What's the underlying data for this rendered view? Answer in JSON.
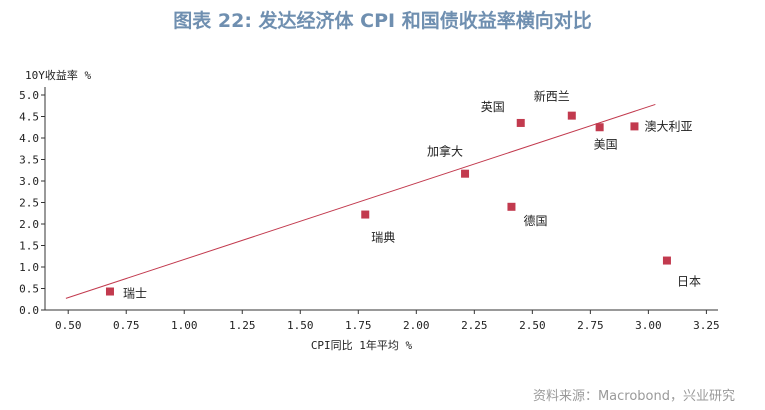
{
  "header": {
    "title": "图表 22: 发达经济体 CPI 和国债收益率横向对比"
  },
  "footer": {
    "source": "资料来源：Macrobond，兴业研究"
  },
  "chart_data": {
    "type": "scatter",
    "xlabel": "CPI同比 1年平均 %",
    "ylabel": "10Y收益率 %",
    "xlim": [
      0.4,
      3.3
    ],
    "ylim": [
      0.0,
      5.0
    ],
    "xticks": [
      "0.50",
      "0.75",
      "1.00",
      "1.25",
      "1.50",
      "1.75",
      "2.00",
      "2.25",
      "2.50",
      "2.75",
      "3.00",
      "3.25"
    ],
    "yticks": [
      "0.0",
      "0.5",
      "1.0",
      "1.5",
      "2.0",
      "2.5",
      "3.0",
      "3.5",
      "4.0",
      "4.5",
      "5.0"
    ],
    "grid": false,
    "marker_color": "#c23a4e",
    "trendline_color": "#c23a4e",
    "points": [
      {
        "label": "瑞士",
        "x": 0.68,
        "y": 0.43
      },
      {
        "label": "瑞典",
        "x": 1.78,
        "y": 2.22
      },
      {
        "label": "加拿大",
        "x": 2.21,
        "y": 3.17
      },
      {
        "label": "德国",
        "x": 2.41,
        "y": 2.4
      },
      {
        "label": "英国",
        "x": 2.45,
        "y": 4.35
      },
      {
        "label": "新西兰",
        "x": 2.67,
        "y": 4.52
      },
      {
        "label": "美国",
        "x": 2.79,
        "y": 4.25
      },
      {
        "label": "澳大利亚",
        "x": 2.94,
        "y": 4.27
      },
      {
        "label": "日本",
        "x": 3.08,
        "y": 1.15
      }
    ],
    "trendline": {
      "x": [
        0.49,
        3.03
      ],
      "y": [
        0.27,
        4.78
      ]
    }
  }
}
